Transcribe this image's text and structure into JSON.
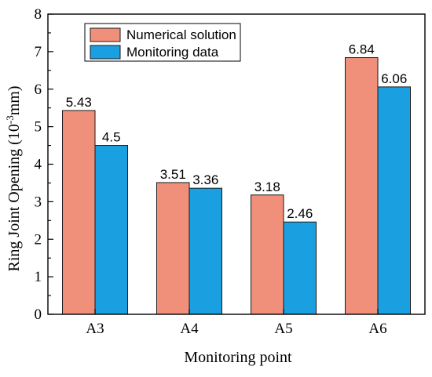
{
  "chart_data": {
    "type": "bar",
    "title": "",
    "xlabel": "Monitoring point",
    "ylabel_main": "Ring Joint Opening (10",
    "ylabel_exp": "-3",
    "ylabel_unit": "mm)",
    "categories": [
      "A3",
      "A4",
      "A5",
      "A6"
    ],
    "series": [
      {
        "name": "Numerical solution",
        "color": "#F0907A",
        "values": [
          5.43,
          3.51,
          3.18,
          6.84
        ],
        "labels": [
          "5.43",
          "3.51",
          "3.18",
          "6.84"
        ]
      },
      {
        "name": "Monitoring data",
        "color": "#1A9FE0",
        "values": [
          4.5,
          3.36,
          2.46,
          6.06
        ],
        "labels": [
          "4.5",
          "3.36",
          "2.46",
          "6.06"
        ]
      }
    ],
    "ylim": [
      0,
      8
    ],
    "yticks": [
      "0",
      "1",
      "2",
      "3",
      "4",
      "5",
      "6",
      "7",
      "8"
    ],
    "grid": false,
    "legend_position": "top-left"
  }
}
